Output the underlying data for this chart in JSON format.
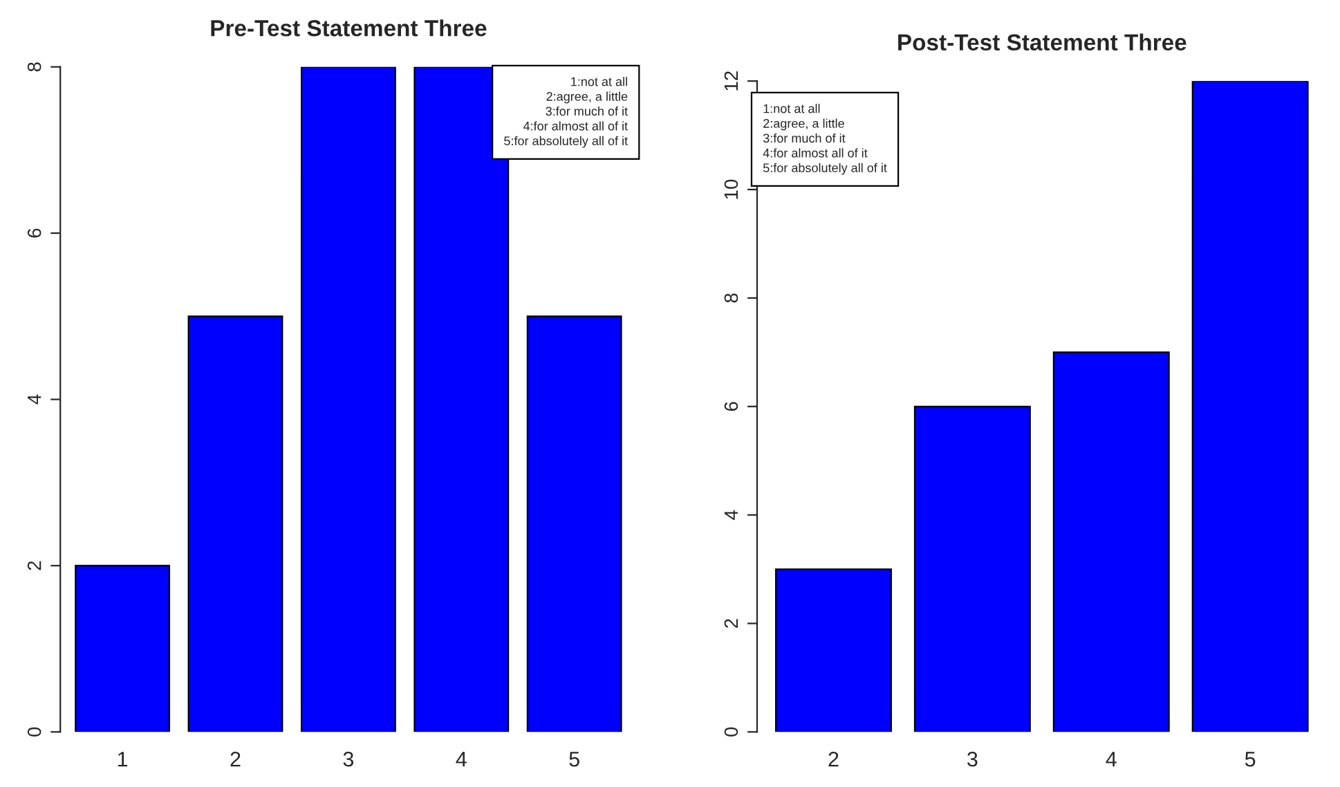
{
  "chart_data": [
    {
      "type": "bar",
      "title": "Pre-Test Statement Three",
      "categories": [
        "1",
        "2",
        "3",
        "4",
        "5"
      ],
      "values": [
        2,
        5,
        8,
        8,
        5
      ],
      "color": "#0000ff",
      "ylim": [
        0,
        8
      ],
      "yticks": [
        0,
        2,
        4,
        6,
        8
      ],
      "grid": false,
      "annotations": [
        "1:not at all",
        "2:agree, a little",
        "3:for much of it",
        "4:for almost all of it",
        "5:for absolutely all of it"
      ]
    },
    {
      "type": "bar",
      "title": "Post-Test Statement Three",
      "categories": [
        "2",
        "3",
        "4",
        "5"
      ],
      "values": [
        3,
        6,
        7,
        12
      ],
      "color": "#0000ff",
      "ylim": [
        0,
        12
      ],
      "yticks": [
        0,
        2,
        4,
        6,
        8,
        10,
        12
      ],
      "grid": false,
      "annotations": [
        "1:not at all",
        "2:agree, a little",
        "3:for much of it",
        "4:for almost all of it",
        "5:for absolutely all of it"
      ]
    }
  ]
}
